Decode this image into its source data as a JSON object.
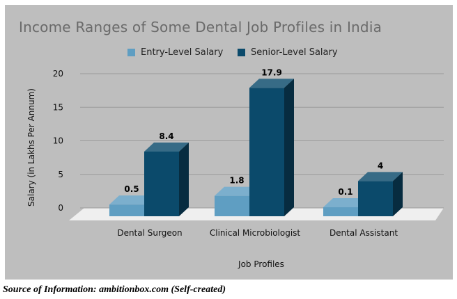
{
  "chart_data": {
    "type": "bar",
    "title": "Income Ranges of Some Dental Job Profiles in India",
    "xlabel": "Job Profiles",
    "ylabel": "Salary (in Lakhs Per Annum)",
    "categories": [
      "Dental Surgeon",
      "Clinical Microbiologist",
      "Dental Assistant"
    ],
    "series": [
      {
        "name": "Entry-Level Salary",
        "values": [
          0.5,
          1.8,
          0.1
        ],
        "color": "#5f9ec2"
      },
      {
        "name": "Senior-Level Salary",
        "values": [
          8.4,
          17.9,
          4
        ],
        "color": "#0b4a6b"
      }
    ],
    "ylim": [
      0,
      20
    ],
    "yticks": [
      "0",
      "5",
      "10",
      "15",
      "20"
    ],
    "grid": true,
    "legend_position": "top-center",
    "data_labels": true
  },
  "caption": "Source of Information: ambitionbox.com (Self-created)",
  "colors": {
    "panel": "#bebebe",
    "title": "#6a6a6a",
    "floor": "#efefef",
    "grid": "#9a9a9a"
  }
}
